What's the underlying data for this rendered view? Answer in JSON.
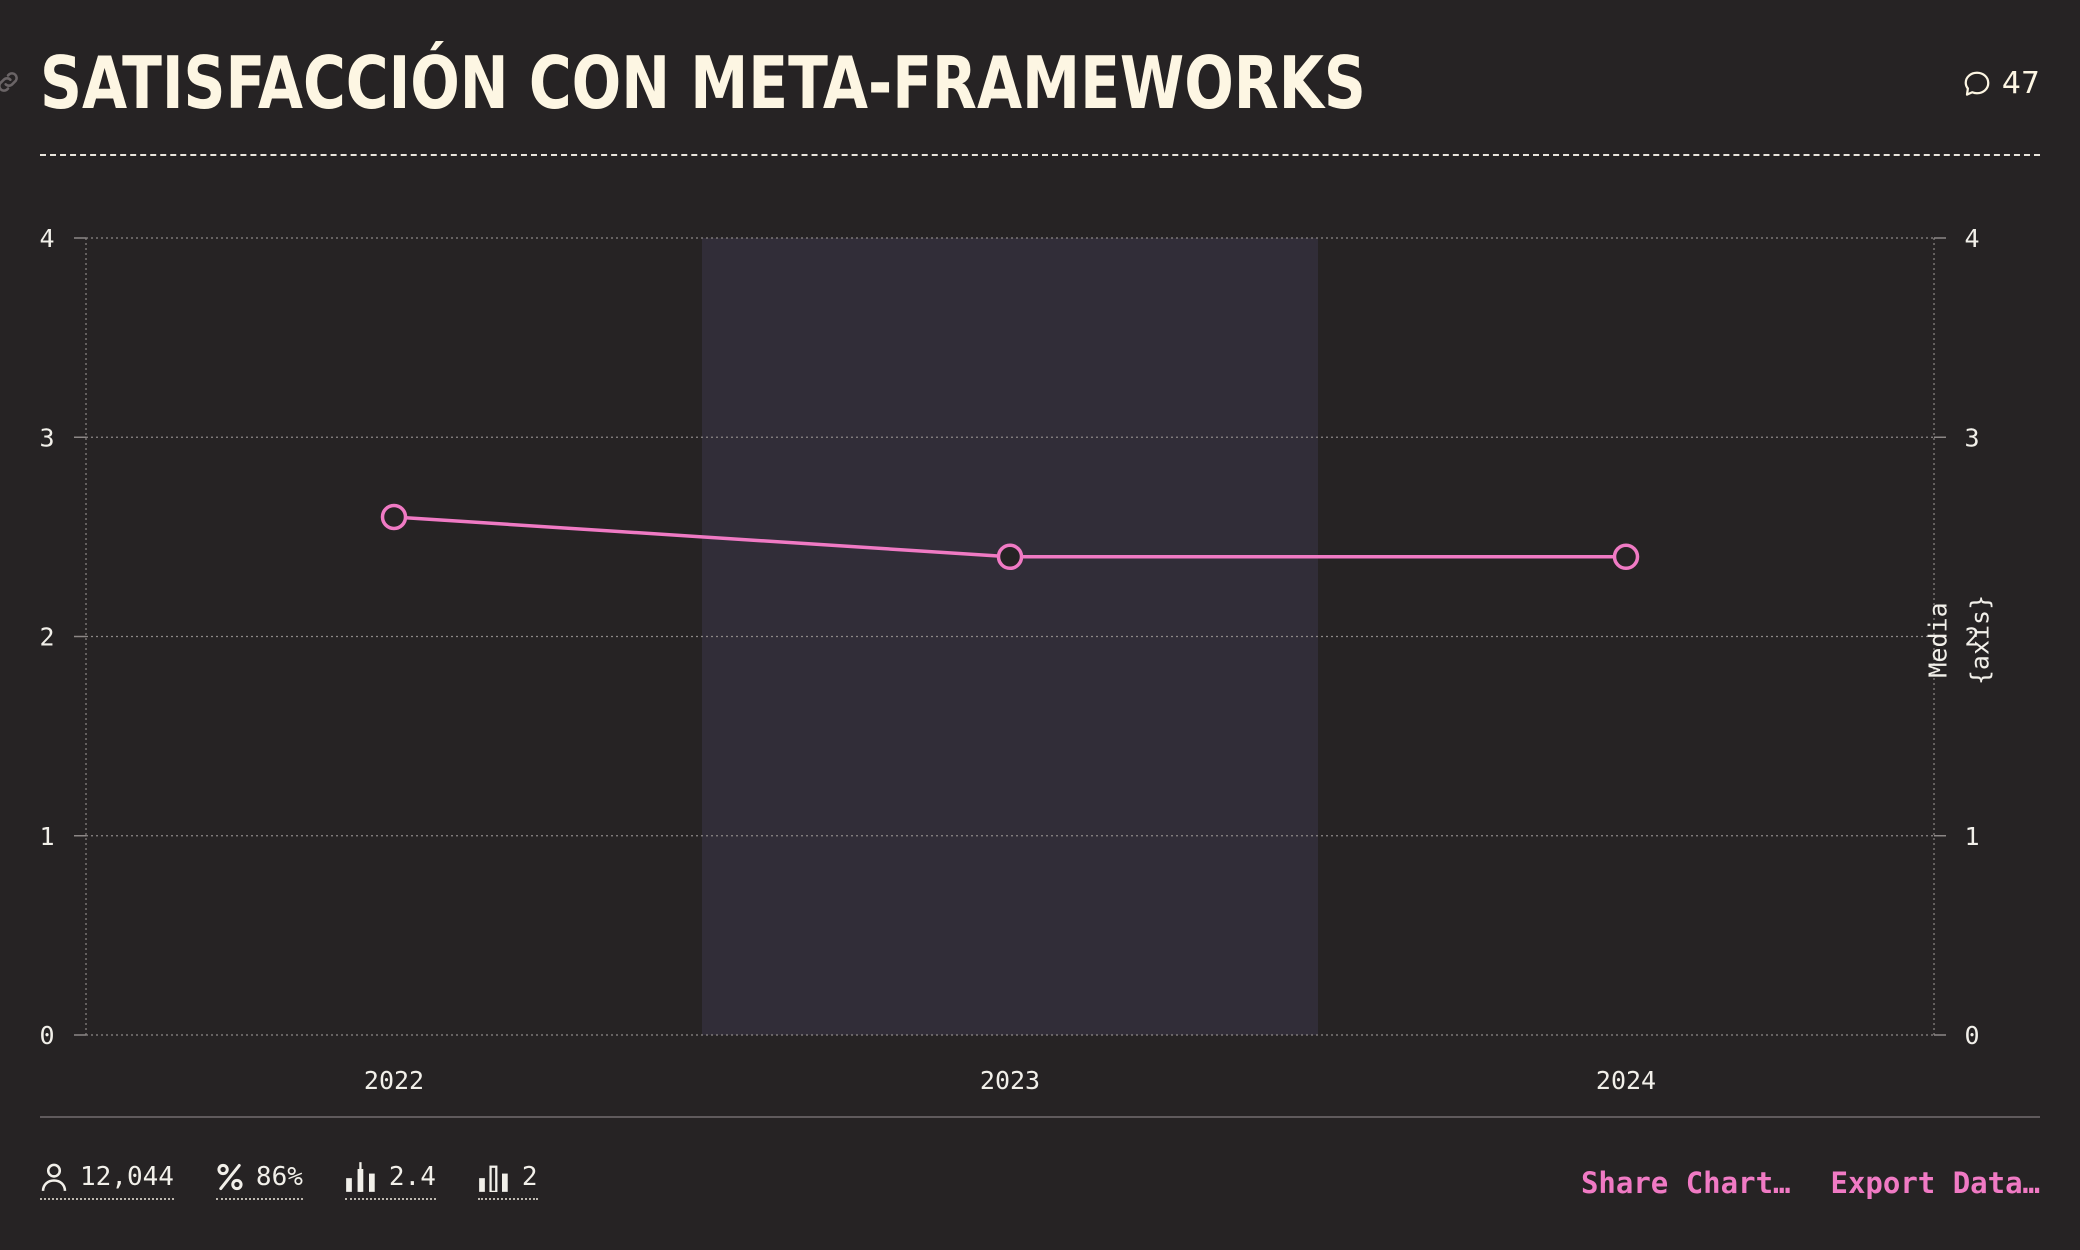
{
  "header": {
    "title": "SATISFACCIÓN CON META-FRAMEWORKS",
    "comment_count": "47"
  },
  "chart_data": {
    "type": "line",
    "title": "SATISFACCIÓN CON META-FRAMEWORKS",
    "categories": [
      "2022",
      "2023",
      "2024"
    ],
    "series": [
      {
        "name": "Media",
        "values": [
          2.6,
          2.4,
          2.4
        ]
      }
    ],
    "ylim": [
      0,
      4
    ],
    "yticks": [
      "0",
      "1",
      "2",
      "3",
      "4"
    ],
    "y2label_line1": "Media",
    "y2label_line2": "{axis}",
    "highlighted_category": "2023",
    "grid": true
  },
  "colors": {
    "background": "#262324",
    "line": "#f07ac4",
    "highlight_band": "#312d38",
    "title": "#fdf6e3"
  },
  "footer": {
    "stats": [
      {
        "icon": "user-icon",
        "value": "12,044"
      },
      {
        "icon": "percent-icon",
        "value": "86%"
      },
      {
        "icon": "mean-bars-icon",
        "value": "2.4"
      },
      {
        "icon": "median-bars-icon",
        "value": "2"
      }
    ],
    "actions": {
      "share": "Share Chart…",
      "export": "Export Data…"
    }
  }
}
